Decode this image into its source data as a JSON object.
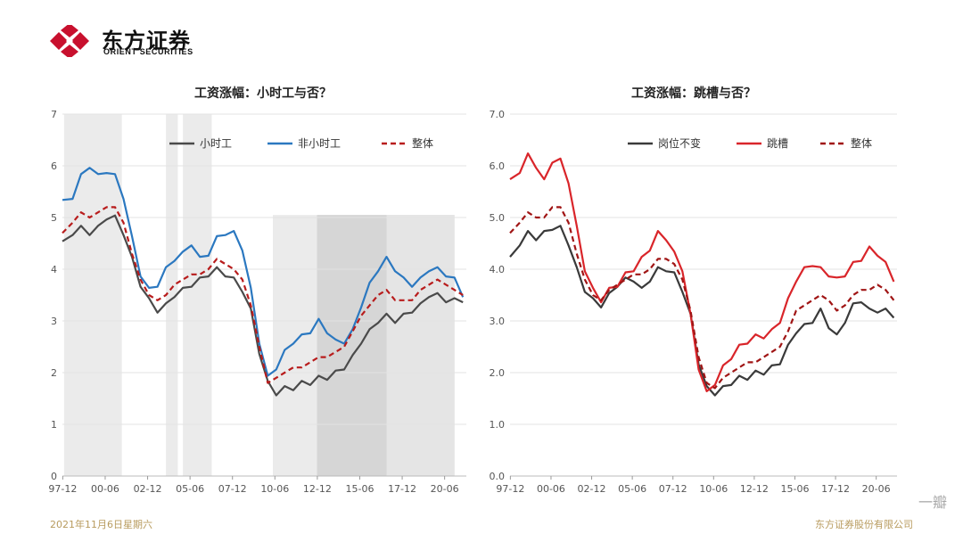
{
  "brand": {
    "name_cn": "东方证券",
    "name_en": "ORIENT SECURITIES",
    "colors": {
      "brand_red": "#c8102e"
    }
  },
  "footer": {
    "date": "2021年11月6日星期六",
    "company": "东方证券股份有限公司"
  },
  "watermark": {
    "text": "一瓣"
  },
  "chart_data": [
    {
      "type": "line",
      "title": "工资涨幅：小时工与否？",
      "ylim": [
        0,
        7
      ],
      "yticks": [
        "0",
        "1",
        "2",
        "3",
        "4",
        "5",
        "6",
        "7"
      ],
      "xticks": [
        "97-12",
        "00-06",
        "02-12",
        "05-06",
        "07-12",
        "10-06",
        "12-12",
        "15-06",
        "17-12",
        "20-06"
      ],
      "xrange": [
        1997.9,
        2021.7
      ],
      "legend_position": "top",
      "grid": "horizontal",
      "shaded_spans": [
        {
          "x": [
            1998.0,
            2001.4
          ],
          "level": "light"
        },
        {
          "x": [
            2004.0,
            2004.7
          ],
          "level": "light"
        },
        {
          "x": [
            2005.0,
            2006.7
          ],
          "level": "light"
        },
        {
          "x": [
            2010.3,
            2012.9
          ],
          "level": "light"
        },
        {
          "x": [
            2012.9,
            2021.0
          ],
          "level": "dark"
        },
        {
          "x": [
            2017.0,
            2021.0
          ],
          "level": "light"
        }
      ],
      "series": [
        {
          "name": "小时工",
          "color": "#4a4a4a",
          "dash": false,
          "x": [
            1997.9,
            1998.5,
            1999.0,
            1999.5,
            2000.0,
            2000.5,
            2001.0,
            2001.5,
            2002.0,
            2002.5,
            2003.0,
            2003.5,
            2004.0,
            2004.5,
            2005.0,
            2005.5,
            2006.0,
            2006.5,
            2007.0,
            2007.5,
            2008.0,
            2008.5,
            2009.0,
            2009.5,
            2010.0,
            2010.5,
            2011.0,
            2011.5,
            2012.0,
            2012.5,
            2013.0,
            2013.5,
            2014.0,
            2014.5,
            2015.0,
            2015.5,
            2016.0,
            2016.5,
            2017.0,
            2017.5,
            2018.0,
            2018.5,
            2019.0,
            2019.5,
            2020.0,
            2020.5,
            2021.0,
            2021.5
          ],
          "y": [
            4.5,
            4.7,
            4.8,
            4.7,
            4.8,
            5.0,
            5.0,
            4.7,
            4.2,
            3.7,
            3.4,
            3.2,
            3.3,
            3.5,
            3.6,
            3.7,
            3.8,
            3.9,
            4.0,
            3.9,
            3.8,
            3.6,
            3.2,
            2.4,
            1.8,
            1.6,
            1.7,
            1.7,
            1.8,
            1.8,
            1.9,
            1.9,
            2.0,
            2.1,
            2.3,
            2.6,
            2.8,
            3.0,
            3.1,
            3.0,
            3.1,
            3.2,
            3.3,
            3.5,
            3.5,
            3.4,
            3.4,
            3.4
          ]
        },
        {
          "name": "非小时工",
          "color": "#2b78c0",
          "dash": false,
          "x": [
            1997.9,
            1998.5,
            1999.0,
            1999.5,
            2000.0,
            2000.5,
            2001.0,
            2001.5,
            2002.0,
            2002.5,
            2003.0,
            2003.5,
            2004.0,
            2004.5,
            2005.0,
            2005.5,
            2006.0,
            2006.5,
            2007.0,
            2007.5,
            2008.0,
            2008.5,
            2009.0,
            2009.5,
            2010.0,
            2010.5,
            2011.0,
            2011.5,
            2012.0,
            2012.5,
            2013.0,
            2013.5,
            2014.0,
            2014.5,
            2015.0,
            2015.5,
            2016.0,
            2016.5,
            2017.0,
            2017.5,
            2018.0,
            2018.5,
            2019.0,
            2019.5,
            2020.0,
            2020.5,
            2021.0,
            2021.5
          ],
          "y": [
            5.3,
            5.4,
            5.8,
            6.0,
            5.8,
            5.9,
            5.8,
            5.4,
            4.6,
            3.9,
            3.6,
            3.7,
            4.0,
            4.2,
            4.3,
            4.5,
            4.2,
            4.3,
            4.6,
            4.7,
            4.7,
            4.4,
            3.6,
            2.6,
            1.9,
            2.1,
            2.4,
            2.6,
            2.7,
            2.8,
            3.0,
            2.8,
            2.6,
            2.6,
            2.8,
            3.3,
            3.7,
            4.0,
            4.2,
            4.0,
            3.8,
            3.7,
            3.8,
            4.0,
            4.0,
            3.9,
            3.8,
            3.5
          ]
        },
        {
          "name": "整体",
          "color": "#b81c1c",
          "dash": true,
          "x": [
            1997.9,
            1998.5,
            1999.0,
            1999.5,
            2000.0,
            2000.5,
            2001.0,
            2001.5,
            2002.0,
            2002.5,
            2003.0,
            2003.5,
            2004.0,
            2004.5,
            2005.0,
            2005.5,
            2006.0,
            2006.5,
            2007.0,
            2007.5,
            2008.0,
            2008.5,
            2009.0,
            2009.5,
            2010.0,
            2010.5,
            2011.0,
            2011.5,
            2012.0,
            2012.5,
            2013.0,
            2013.5,
            2014.0,
            2014.5,
            2015.0,
            2015.5,
            2016.0,
            2016.5,
            2017.0,
            2017.5,
            2018.0,
            2018.5,
            2019.0,
            2019.5,
            2020.0,
            2020.5,
            2021.0,
            2021.5
          ],
          "y": [
            4.7,
            4.9,
            5.1,
            5.0,
            5.1,
            5.2,
            5.2,
            4.9,
            4.3,
            3.8,
            3.5,
            3.4,
            3.5,
            3.7,
            3.8,
            3.9,
            3.9,
            4.0,
            4.2,
            4.1,
            4.0,
            3.8,
            3.3,
            2.5,
            1.8,
            1.9,
            2.0,
            2.1,
            2.1,
            2.2,
            2.3,
            2.3,
            2.4,
            2.5,
            2.8,
            3.1,
            3.3,
            3.5,
            3.6,
            3.4,
            3.4,
            3.4,
            3.6,
            3.7,
            3.8,
            3.7,
            3.6,
            3.5
          ]
        }
      ]
    },
    {
      "type": "line",
      "title": "工资涨幅：跳槽与否？",
      "ylim": [
        0,
        7
      ],
      "yticks": [
        "0.0",
        "1.0",
        "2.0",
        "3.0",
        "4.0",
        "5.0",
        "6.0",
        "7.0"
      ],
      "xticks": [
        "97-12",
        "00-06",
        "02-12",
        "05-06",
        "07-12",
        "10-06",
        "12-12",
        "15-06",
        "17-12",
        "20-06"
      ],
      "xrange": [
        1997.9,
        2021.7
      ],
      "legend_position": "top",
      "grid": "horizontal",
      "shaded_spans": [],
      "series": [
        {
          "name": "岗位不变",
          "color": "#3a3a3a",
          "dash": false,
          "x": [
            1997.9,
            1998.5,
            1999.0,
            1999.5,
            2000.0,
            2000.5,
            2001.0,
            2001.5,
            2002.0,
            2002.5,
            2003.0,
            2003.5,
            2004.0,
            2004.5,
            2005.0,
            2005.5,
            2006.0,
            2006.5,
            2007.0,
            2007.5,
            2008.0,
            2008.5,
            2009.0,
            2009.5,
            2010.0,
            2010.5,
            2011.0,
            2011.5,
            2012.0,
            2012.5,
            2013.0,
            2013.5,
            2014.0,
            2014.5,
            2015.0,
            2015.5,
            2016.0,
            2016.5,
            2017.0,
            2017.5,
            2018.0,
            2018.5,
            2019.0,
            2019.5,
            2020.0,
            2020.5,
            2021.0,
            2021.5
          ],
          "y": [
            4.2,
            4.5,
            4.7,
            4.6,
            4.7,
            4.8,
            4.8,
            4.5,
            4.0,
            3.6,
            3.4,
            3.3,
            3.5,
            3.7,
            3.8,
            3.8,
            3.6,
            3.8,
            4.0,
            4.0,
            3.9,
            3.6,
            3.1,
            2.2,
            1.7,
            1.6,
            1.7,
            1.8,
            1.9,
            1.9,
            2.0,
            2.0,
            2.1,
            2.2,
            2.5,
            2.8,
            2.9,
            3.0,
            3.2,
            2.9,
            2.7,
            3.0,
            3.3,
            3.4,
            3.2,
            3.2,
            3.2,
            3.1
          ]
        },
        {
          "name": "跳槽",
          "color": "#d9252a",
          "dash": false,
          "x": [
            1997.9,
            1998.5,
            1999.0,
            1999.5,
            2000.0,
            2000.5,
            2001.0,
            2001.5,
            2002.0,
            2002.5,
            2003.0,
            2003.5,
            2004.0,
            2004.5,
            2005.0,
            2005.5,
            2006.0,
            2006.5,
            2007.0,
            2007.5,
            2008.0,
            2008.5,
            2009.0,
            2009.5,
            2010.0,
            2010.5,
            2011.0,
            2011.5,
            2012.0,
            2012.5,
            2013.0,
            2013.5,
            2014.0,
            2014.5,
            2015.0,
            2015.5,
            2016.0,
            2016.5,
            2017.0,
            2017.5,
            2018.0,
            2018.5,
            2019.0,
            2019.5,
            2020.0,
            2020.5,
            2021.0,
            2021.5
          ],
          "y": [
            5.7,
            5.9,
            6.2,
            6.0,
            5.7,
            6.1,
            6.1,
            5.7,
            4.8,
            4.0,
            3.6,
            3.4,
            3.6,
            3.7,
            3.9,
            4.0,
            4.2,
            4.4,
            4.7,
            4.6,
            4.3,
            4.0,
            3.1,
            2.1,
            1.6,
            1.8,
            2.1,
            2.3,
            2.5,
            2.6,
            2.7,
            2.7,
            2.8,
            3.0,
            3.4,
            3.8,
            4.0,
            4.1,
            4.0,
            3.9,
            3.8,
            3.9,
            4.1,
            4.2,
            4.4,
            4.3,
            4.1,
            3.8
          ]
        },
        {
          "name": "整体",
          "color": "#a01515",
          "dash": true,
          "x": [
            1997.9,
            1998.5,
            1999.0,
            1999.5,
            2000.0,
            2000.5,
            2001.0,
            2001.5,
            2002.0,
            2002.5,
            2003.0,
            2003.5,
            2004.0,
            2004.5,
            2005.0,
            2005.5,
            2006.0,
            2006.5,
            2007.0,
            2007.5,
            2008.0,
            2008.5,
            2009.0,
            2009.5,
            2010.0,
            2010.5,
            2011.0,
            2011.5,
            2012.0,
            2012.5,
            2013.0,
            2013.5,
            2014.0,
            2014.5,
            2015.0,
            2015.5,
            2016.0,
            2016.5,
            2017.0,
            2017.5,
            2018.0,
            2018.5,
            2019.0,
            2019.5,
            2020.0,
            2020.5,
            2021.0,
            2021.5
          ],
          "y": [
            4.7,
            4.9,
            5.1,
            5.0,
            5.0,
            5.2,
            5.2,
            4.9,
            4.3,
            3.8,
            3.5,
            3.4,
            3.6,
            3.7,
            3.8,
            3.9,
            3.9,
            4.0,
            4.2,
            4.2,
            4.1,
            3.8,
            3.2,
            2.3,
            1.8,
            1.7,
            1.9,
            2.0,
            2.1,
            2.2,
            2.2,
            2.3,
            2.4,
            2.5,
            2.8,
            3.2,
            3.3,
            3.4,
            3.5,
            3.4,
            3.2,
            3.3,
            3.5,
            3.6,
            3.6,
            3.7,
            3.6,
            3.4
          ]
        }
      ]
    }
  ]
}
